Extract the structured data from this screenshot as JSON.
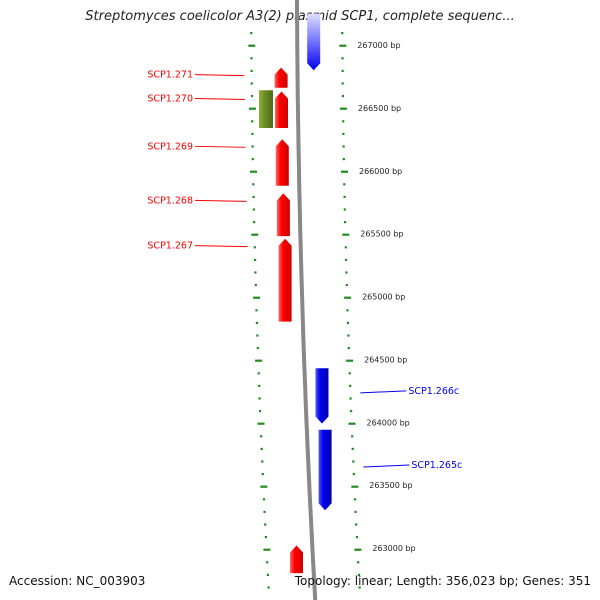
{
  "title": "Streptomyces coelicolor A3(2) plasmid SCP1, complete sequenc...",
  "footer": {
    "accession": "Accession: NC_003903",
    "summary": "Topology: linear; Length: 356,023 bp; Genes: 351"
  },
  "scale": {
    "unit": "bp",
    "ticks": [
      {
        "bp": 267000,
        "label": "267000 bp"
      },
      {
        "bp": 266500,
        "label": "266500 bp"
      },
      {
        "bp": 266000,
        "label": "266000 bp"
      },
      {
        "bp": 265500,
        "label": "265500 bp"
      },
      {
        "bp": 265000,
        "label": "265000 bp"
      },
      {
        "bp": 264500,
        "label": "264500 bp"
      },
      {
        "bp": 264000,
        "label": "264000 bp"
      },
      {
        "bp": 263500,
        "label": "263500 bp"
      },
      {
        "bp": 263000,
        "label": "263000 bp"
      }
    ]
  },
  "colors": {
    "forward": "#ff0000",
    "reverse": "#0000ee",
    "other": "#6b8e23",
    "ticks": "#228b22",
    "backbone": "#888888"
  },
  "features": [
    {
      "name": "",
      "strand": "reverse",
      "start": 267250,
      "end": 266800,
      "color": "#0000ee",
      "faded_top": true
    },
    {
      "name": "SCP1.271",
      "strand": "forward",
      "start": 266660,
      "end": 266820,
      "color": "#ff0000",
      "labeled": true
    },
    {
      "name": "SCP1.270",
      "strand": "forward",
      "start": 266340,
      "end": 266630,
      "color": "#ff0000",
      "labeled": true
    },
    {
      "name": "",
      "strand": "none",
      "start": 266340,
      "end": 266640,
      "color": "#6b8e23"
    },
    {
      "name": "SCP1.269",
      "strand": "forward",
      "start": 265880,
      "end": 266250,
      "color": "#ff0000",
      "labeled": true
    },
    {
      "name": "SCP1.268",
      "strand": "forward",
      "start": 265480,
      "end": 265820,
      "color": "#ff0000",
      "labeled": true
    },
    {
      "name": "SCP1.267",
      "strand": "forward",
      "start": 264800,
      "end": 265460,
      "color": "#ff0000",
      "labeled": true
    },
    {
      "name": "SCP1.266c",
      "strand": "reverse",
      "start": 264430,
      "end": 263990,
      "color": "#0000ee",
      "labeled": true
    },
    {
      "name": "SCP1.265c",
      "strand": "reverse",
      "start": 263940,
      "end": 263300,
      "color": "#0000ee",
      "labeled": true
    },
    {
      "name": "",
      "strand": "forward",
      "start": 262800,
      "end": 263020,
      "color": "#ff0000"
    }
  ]
}
